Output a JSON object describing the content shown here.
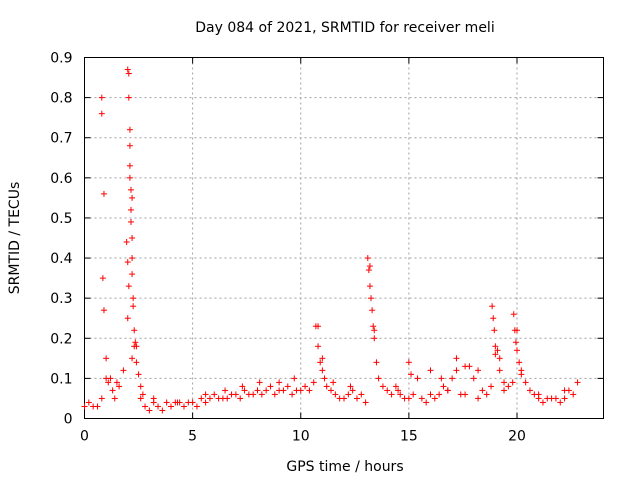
{
  "chart_data": {
    "type": "scatter",
    "title": "Day 084 of 2021, SRMTID for receiver meli",
    "xlabel": "GPS time / hours",
    "ylabel": "SRMTID / TECUs",
    "xlim": [
      0,
      24
    ],
    "ylim": [
      0,
      0.9
    ],
    "x_ticks": [
      0,
      5,
      10,
      15,
      20
    ],
    "x_tick_labels": [
      "0",
      "5",
      "10",
      "15",
      "20"
    ],
    "y_ticks": [
      0,
      0.1,
      0.2,
      0.3,
      0.4,
      0.5,
      0.6,
      0.7,
      0.8,
      0.9
    ],
    "y_tick_labels": [
      "0",
      "0.1",
      "0.2",
      "0.3",
      "0.4",
      "0.5",
      "0.6",
      "0.7",
      "0.8",
      "0.9"
    ],
    "grid": true,
    "marker": "+",
    "color": "#ff0000",
    "series": [
      {
        "name": "SRMTID",
        "x": [
          0.0,
          0.2,
          0.4,
          0.6,
          0.8,
          1.0,
          1.2,
          1.4,
          1.6,
          1.8,
          2.0,
          2.2,
          2.4,
          2.6,
          2.8,
          3.0,
          3.2,
          3.4,
          3.6,
          3.8,
          4.0,
          4.2,
          4.4,
          4.6,
          4.8,
          5.0,
          5.2,
          5.4,
          5.6,
          5.8,
          6.0,
          6.2,
          6.4,
          6.6,
          6.8,
          7.0,
          7.2,
          7.4,
          7.6,
          7.8,
          8.0,
          8.2,
          8.4,
          8.6,
          8.8,
          9.0,
          9.2,
          9.4,
          9.6,
          9.8,
          10.0,
          10.2,
          10.4,
          10.6,
          10.8,
          11.0,
          11.2,
          11.4,
          11.6,
          11.8,
          12.0,
          12.2,
          12.4,
          12.6,
          12.8,
          13.0,
          13.2,
          13.4,
          13.6,
          13.8,
          14.0,
          14.2,
          14.4,
          14.6,
          14.8,
          15.0,
          15.2,
          15.4,
          15.6,
          15.8,
          16.0,
          16.2,
          16.4,
          16.6,
          16.8,
          17.0,
          17.2,
          17.4,
          17.6,
          17.8,
          18.0,
          18.2,
          18.4,
          18.6,
          18.8,
          19.0,
          19.2,
          19.4,
          19.6,
          19.8,
          20.0,
          20.2,
          20.4,
          20.6,
          20.8,
          21.0,
          21.2,
          21.4,
          21.6,
          21.8,
          22.0,
          22.2,
          22.4,
          22.6,
          22.8,
          0.8,
          0.8,
          0.9,
          0.85,
          0.9,
          2.0,
          2.05,
          2.05,
          2.1,
          2.1,
          2.1,
          2.15,
          2.15,
          2.15,
          2.2,
          2.2,
          2.2,
          2.25,
          2.25,
          2.3,
          2.35,
          1.95,
          2.0,
          2.05,
          2.1,
          2.2,
          2.3,
          2.4,
          2.5,
          1.0,
          1.1,
          1.3,
          1.5,
          10.7,
          10.8,
          10.9,
          11.0,
          11.1,
          13.1,
          13.15,
          13.2,
          13.25,
          13.3,
          13.35,
          13.4,
          13.5,
          15.0,
          15.1,
          16.0,
          16.5,
          17.2,
          17.6,
          18.2,
          18.85,
          18.9,
          18.95,
          19.0,
          19.1,
          19.2,
          19.85,
          19.9,
          19.95,
          20.0,
          20.1,
          20.2,
          2.6,
          2.7,
          3.2,
          4.3,
          5.6,
          6.5,
          7.3,
          8.1,
          9.0,
          9.7,
          11.5,
          12.3,
          14.5,
          16.8,
          19.4,
          21.0,
          22.2
        ],
        "y": [
          0.03,
          0.04,
          0.03,
          0.03,
          0.05,
          0.15,
          0.1,
          0.05,
          0.08,
          0.12,
          0.25,
          0.15,
          0.18,
          0.05,
          0.03,
          0.02,
          0.04,
          0.03,
          0.02,
          0.04,
          0.03,
          0.04,
          0.04,
          0.03,
          0.04,
          0.04,
          0.03,
          0.05,
          0.04,
          0.05,
          0.06,
          0.05,
          0.05,
          0.05,
          0.06,
          0.06,
          0.05,
          0.07,
          0.06,
          0.06,
          0.07,
          0.06,
          0.07,
          0.08,
          0.06,
          0.07,
          0.07,
          0.08,
          0.06,
          0.07,
          0.07,
          0.08,
          0.07,
          0.09,
          0.23,
          0.15,
          0.08,
          0.07,
          0.06,
          0.05,
          0.05,
          0.06,
          0.07,
          0.05,
          0.06,
          0.04,
          0.38,
          0.22,
          0.1,
          0.08,
          0.07,
          0.06,
          0.08,
          0.06,
          0.05,
          0.05,
          0.06,
          0.1,
          0.05,
          0.04,
          0.06,
          0.05,
          0.06,
          0.08,
          0.07,
          0.1,
          0.12,
          0.06,
          0.06,
          0.13,
          0.1,
          0.05,
          0.07,
          0.06,
          0.08,
          0.16,
          0.12,
          0.07,
          0.08,
          0.09,
          0.22,
          0.12,
          0.09,
          0.07,
          0.06,
          0.05,
          0.04,
          0.05,
          0.05,
          0.05,
          0.04,
          0.05,
          0.07,
          0.06,
          0.09,
          0.8,
          0.76,
          0.56,
          0.35,
          0.27,
          0.87,
          0.86,
          0.8,
          0.72,
          0.68,
          0.63,
          0.57,
          0.52,
          0.49,
          0.45,
          0.4,
          0.36,
          0.3,
          0.28,
          0.22,
          0.19,
          0.44,
          0.39,
          0.33,
          0.6,
          0.55,
          0.18,
          0.14,
          0.11,
          0.1,
          0.09,
          0.07,
          0.09,
          0.23,
          0.18,
          0.14,
          0.12,
          0.1,
          0.4,
          0.37,
          0.33,
          0.3,
          0.27,
          0.23,
          0.2,
          0.14,
          0.14,
          0.11,
          0.12,
          0.1,
          0.15,
          0.13,
          0.12,
          0.28,
          0.25,
          0.22,
          0.18,
          0.17,
          0.15,
          0.26,
          0.22,
          0.19,
          0.17,
          0.14,
          0.11,
          0.08,
          0.06,
          0.05,
          0.04,
          0.06,
          0.07,
          0.08,
          0.09,
          0.09,
          0.1,
          0.09,
          0.08,
          0.07,
          0.07,
          0.09,
          0.06,
          0.07
        ]
      }
    ]
  }
}
